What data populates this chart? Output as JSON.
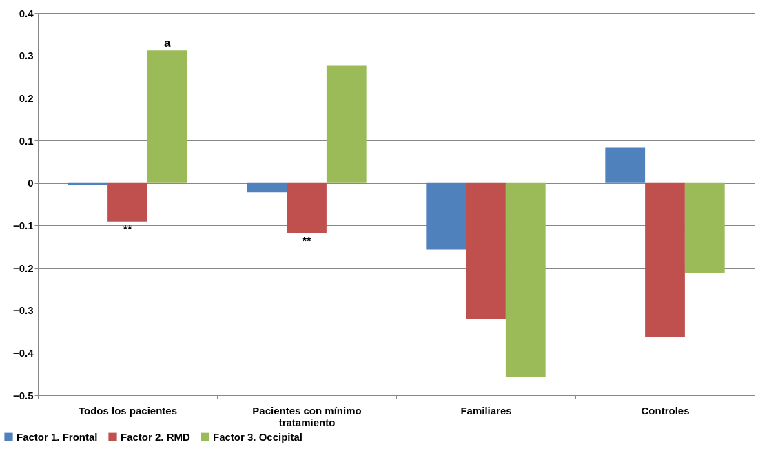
{
  "chart_data": {
    "type": "bar",
    "categories": [
      "Todos los pacientes",
      "Pacientes con mínimo tratamiento",
      "Familiares",
      "Controles"
    ],
    "series": [
      {
        "name": "Factor 1. Frontal",
        "color": "#4f81bd",
        "values": [
          -0.005,
          -0.022,
          -0.157,
          0.083
        ]
      },
      {
        "name": "Factor 2. RMD",
        "color": "#c0504d",
        "values": [
          -0.091,
          -0.119,
          -0.32,
          -0.362
        ]
      },
      {
        "name": "Factor 3. Occipital",
        "color": "#9bbb59",
        "values": [
          0.312,
          0.276,
          -0.458,
          -0.213
        ]
      }
    ],
    "ylim": [
      -0.5,
      0.4
    ],
    "yticks": [
      -0.5,
      -0.4,
      -0.3,
      -0.2,
      -0.1,
      0,
      0.1,
      0.2,
      0.3,
      0.4
    ],
    "grid": "y",
    "legend": "bottom left",
    "annotations": [
      "a",
      {
        "text": "**",
        "x": "Todos los pacientes",
        "y": -0.091
      },
      {
        "text": "**",
        "x": "Pacientes con mínimo tratamiento",
        "y": -0.119
      }
    ]
  }
}
